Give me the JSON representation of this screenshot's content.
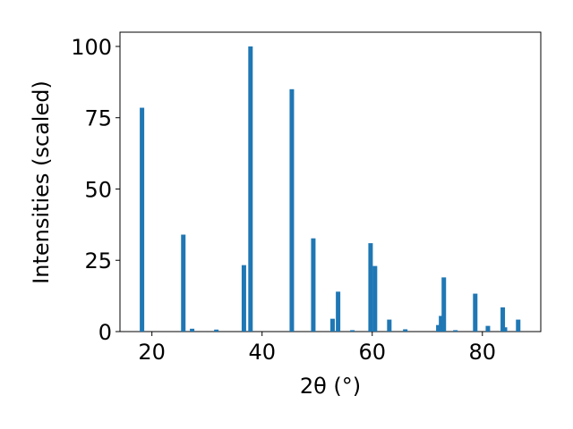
{
  "chart_data": {
    "type": "bar",
    "x_label": "2θ (°)",
    "y_label": "Intensities (scaled)",
    "x": [
      18.2,
      25.7,
      27.3,
      31.7,
      36.7,
      37.9,
      45.4,
      49.3,
      52.8,
      53.8,
      56.4,
      59.7,
      60.5,
      63.1,
      66.0,
      72.0,
      72.5,
      73.0,
      75.1,
      78.7,
      81.0,
      83.7,
      84.1,
      86.5
    ],
    "values": [
      78.5,
      34,
      1,
      0.7,
      23.3,
      100,
      85,
      32.7,
      4.5,
      14,
      0.5,
      31,
      23,
      4.2,
      0.8,
      2.3,
      5.5,
      19,
      0.5,
      13.3,
      2,
      8.5,
      1.5,
      4.2
    ],
    "color": "#1f77b4",
    "xlim": [
      14.2,
      90.6
    ],
    "xticks": [
      20,
      40,
      60,
      80
    ],
    "ylim": [
      0,
      105
    ],
    "yticks": [
      0,
      25,
      50,
      75,
      100
    ]
  }
}
